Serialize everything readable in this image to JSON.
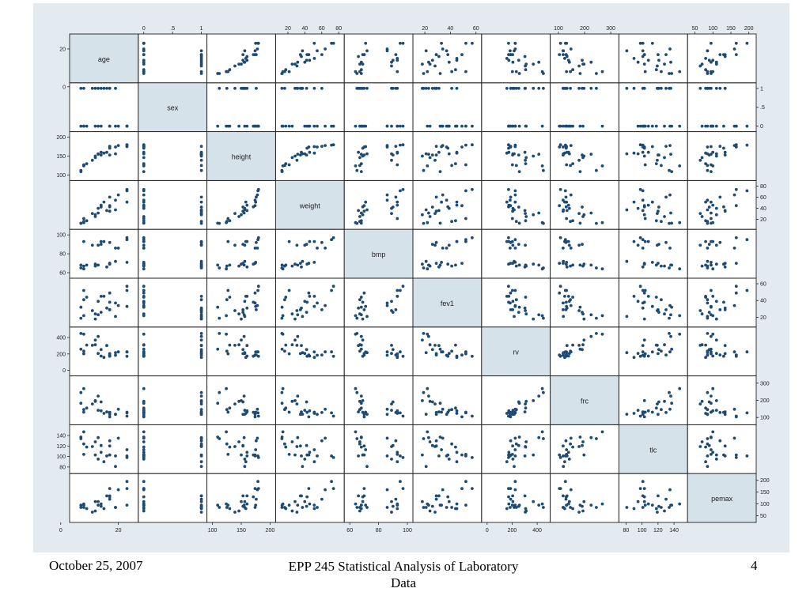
{
  "footer": {
    "date": "October 25, 2007",
    "course": "EPP 245 Statistical Analysis of Laboratory Data",
    "page_number": "4"
  },
  "chart_data": {
    "type": "scatter-matrix",
    "variables": [
      {
        "name": "age",
        "range": [
          5,
          25
        ],
        "ticks": [
          0,
          20
        ],
        "tick_side": "bottom"
      },
      {
        "name": "sex",
        "range": [
          0,
          1
        ],
        "ticks": [
          0,
          0.5,
          1
        ],
        "tick_labels": [
          "0",
          ".5",
          "1"
        ],
        "tick_side": "top"
      },
      {
        "name": "height",
        "range": [
          100,
          200
        ],
        "ticks": [
          100,
          150,
          200
        ],
        "tick_side": "bottom"
      },
      {
        "name": "weight",
        "range": [
          12,
          80
        ],
        "ticks": [
          20,
          40,
          60,
          80
        ],
        "tick_side": "top"
      },
      {
        "name": "bmp",
        "range": [
          60,
          100
        ],
        "ticks": [
          60,
          80,
          100
        ],
        "tick_side": "bottom"
      },
      {
        "name": "fev1",
        "range": [
          15,
          60
        ],
        "ticks": [
          20,
          40,
          60
        ],
        "tick_side": "top"
      },
      {
        "name": "rv",
        "range": [
          0,
          460
        ],
        "ticks": [
          0,
          200,
          400
        ],
        "tick_side": "bottom"
      },
      {
        "name": "frc",
        "range": [
          90,
          310
        ],
        "ticks": [
          100,
          200,
          300
        ],
        "tick_side": "top"
      },
      {
        "name": "tlc",
        "range": [
          78,
          150
        ],
        "ticks": [
          80,
          100,
          120,
          140
        ],
        "tick_side": "bottom"
      },
      {
        "name": "pemax",
        "range": [
          45,
          205
        ],
        "ticks": [
          50,
          100,
          150,
          200
        ],
        "tick_side": "top"
      }
    ],
    "observations": [
      [
        7,
        0,
        109,
        13.1,
        68,
        32,
        258,
        183,
        137,
        95
      ],
      [
        7,
        1,
        112,
        12.9,
        65,
        19,
        449,
        245,
        134,
        85
      ],
      [
        8,
        0,
        124,
        14.1,
        64,
        22,
        441,
        268,
        147,
        100
      ],
      [
        8,
        1,
        125,
        16.2,
        67,
        41,
        234,
        146,
        124,
        85
      ],
      [
        8,
        0,
        127,
        21.5,
        93,
        52,
        202,
        131,
        104,
        95
      ],
      [
        9,
        0,
        130,
        17.5,
        68,
        44,
        308,
        155,
        118,
        80
      ],
      [
        11,
        1,
        139,
        30.7,
        89,
        28,
        305,
        179,
        119,
        65
      ],
      [
        12,
        1,
        150,
        28.4,
        69,
        18,
        369,
        198,
        103,
        110
      ],
      [
        12,
        0,
        146,
        25.1,
        67,
        24,
        312,
        194,
        128,
        70
      ],
      [
        13,
        1,
        155,
        31.5,
        68,
        23,
        413,
        225,
        136,
        95
      ],
      [
        13,
        0,
        156,
        39.9,
        89,
        39,
        206,
        142,
        95,
        110
      ],
      [
        14,
        1,
        153,
        42.1,
        90,
        26,
        253,
        191,
        121,
        90
      ],
      [
        14,
        0,
        160,
        45.6,
        93,
        45,
        174,
        139,
        108,
        100
      ],
      [
        15,
        1,
        158,
        51.2,
        93,
        45,
        158,
        124,
        90,
        80
      ],
      [
        16,
        1,
        160,
        35.9,
        66,
        31,
        302,
        133,
        101,
        134
      ],
      [
        17,
        1,
        153,
        34.8,
        70,
        29,
        204,
        118,
        120,
        134
      ],
      [
        17,
        0,
        174,
        44.7,
        70,
        49,
        187,
        104,
        103,
        165
      ],
      [
        17,
        1,
        176,
        60.1,
        92,
        29,
        188,
        129,
        130,
        120
      ],
      [
        17,
        0,
        171,
        42.6,
        69,
        38,
        172,
        130,
        103,
        130
      ],
      [
        19,
        1,
        156,
        37.2,
        72,
        21,
        216,
        119,
        81,
        85
      ],
      [
        19,
        0,
        174,
        54.6,
        86,
        37,
        184,
        118,
        101,
        85
      ],
      [
        20,
        0,
        178,
        64.0,
        86,
        34,
        225,
        148,
        135,
        160
      ],
      [
        23,
        0,
        180,
        73.8,
        97,
        57,
        171,
        108,
        98,
        165
      ],
      [
        23,
        0,
        175,
        51.1,
        71,
        33,
        224,
        131,
        113,
        95
      ],
      [
        23,
        0,
        179,
        71.5,
        95,
        52,
        225,
        127,
        101,
        195
      ]
    ]
  }
}
